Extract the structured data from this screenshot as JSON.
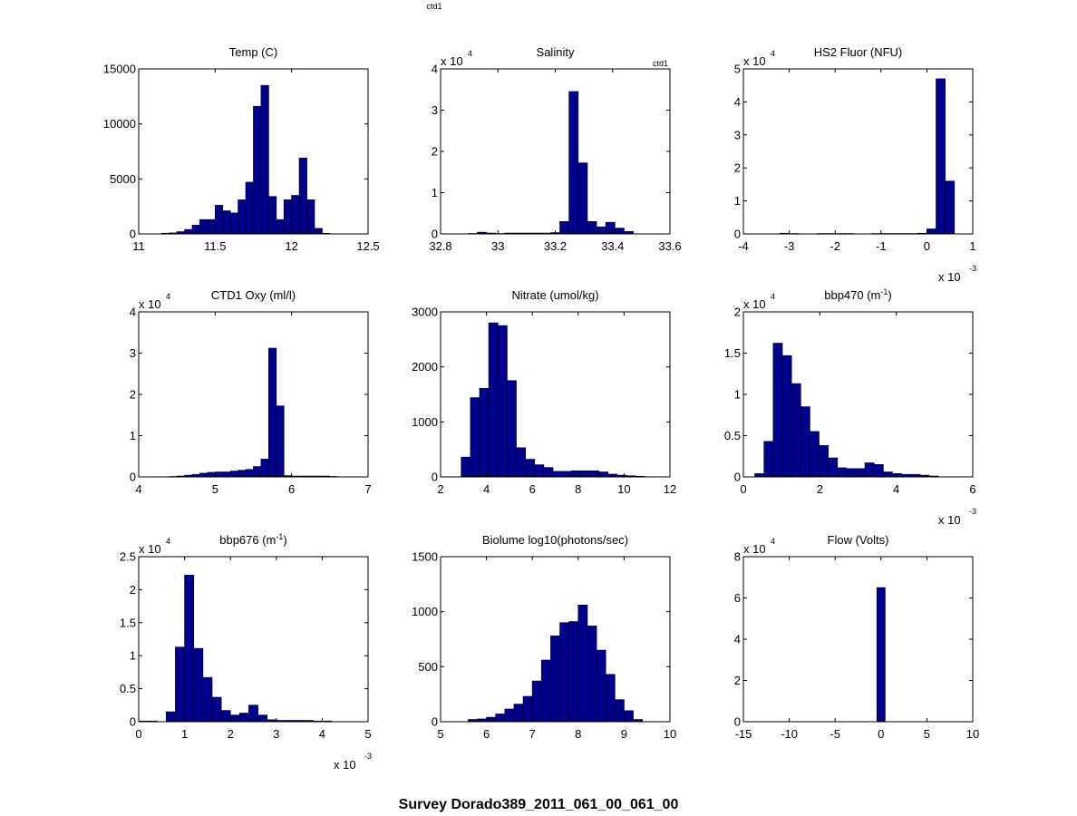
{
  "figure": {
    "top_label": "ctd1",
    "title": "Survey Dorado389_2011_061_00_061_00"
  },
  "chart_data": [
    {
      "type": "bar",
      "title": "Temp (C)",
      "xlim": [
        11,
        12.5
      ],
      "ylim": [
        0,
        15000
      ],
      "xticks": [
        11,
        11.5,
        12,
        12.5
      ],
      "xtick_labels": [
        "11",
        "11.5",
        "12",
        "12.5"
      ],
      "yticks": [
        0,
        5000,
        10000,
        15000
      ],
      "ytick_labels": [
        "0",
        "5000",
        "10000",
        "15000"
      ],
      "bin_width": 0.05,
      "bins": [
        11.175,
        11.225,
        11.275,
        11.325,
        11.375,
        11.425,
        11.475,
        11.525,
        11.575,
        11.625,
        11.675,
        11.725,
        11.775,
        11.825,
        11.875,
        11.925,
        11.975,
        12.025,
        12.075,
        12.125,
        12.175,
        12.225
      ],
      "values": [
        60,
        90,
        200,
        400,
        800,
        1300,
        1300,
        2600,
        2100,
        1900,
        3100,
        4700,
        11600,
        13500,
        3400,
        1300,
        3100,
        3500,
        6900,
        3100,
        500,
        50
      ]
    },
    {
      "type": "bar",
      "title": "Salinity",
      "corner_label": "ctd1",
      "xlim": [
        32.8,
        33.6
      ],
      "ylim": [
        0,
        4
      ],
      "y_multiplier": "x 10",
      "y_exponent": "4",
      "xticks": [
        32.8,
        33,
        33.2,
        33.4,
        33.6
      ],
      "xtick_labels": [
        "32.8",
        "33",
        "33.2",
        "33.4",
        "33.6"
      ],
      "yticks": [
        0,
        1,
        2,
        3,
        4
      ],
      "ytick_labels": [
        "0",
        "1",
        "2",
        "3",
        "4"
      ],
      "bin_width": 0.032,
      "bins": [
        32.816,
        32.848,
        32.88,
        32.912,
        32.944,
        32.976,
        33.008,
        33.04,
        33.072,
        33.104,
        33.136,
        33.168,
        33.2,
        33.232,
        33.264,
        33.296,
        33.328,
        33.36,
        33.392,
        33.424,
        33.456,
        33.488
      ],
      "values": [
        0,
        0,
        0,
        0.01,
        0.04,
        0.02,
        0.01,
        0.02,
        0.02,
        0.02,
        0.02,
        0.02,
        0.03,
        0.3,
        3.45,
        1.72,
        0.3,
        0.17,
        0.28,
        0.14,
        0.06,
        0
      ]
    },
    {
      "type": "bar",
      "title": "HS2 Fluor (NFU)",
      "xlim": [
        -4,
        1
      ],
      "ylim": [
        0,
        5
      ],
      "y_multiplier": "x 10",
      "y_exponent": "4",
      "x_multiplier": "x 10",
      "x_exponent": "-3",
      "xticks": [
        -4,
        -3,
        -2,
        -1,
        0,
        1
      ],
      "xtick_labels": [
        "-4",
        "-3",
        "-2",
        "-1",
        "0",
        "1"
      ],
      "yticks": [
        0,
        1,
        2,
        3,
        4,
        5
      ],
      "ytick_labels": [
        "0",
        "1",
        "2",
        "3",
        "4",
        "5"
      ],
      "bin_width": 0.2,
      "bins": [
        -3.1,
        -2.9,
        -2.7,
        -2.5,
        -2.3,
        -2.1,
        -1.9,
        -1.7,
        -1.5,
        -1.3,
        -1.1,
        -0.9,
        -0.7,
        -0.5,
        -0.3,
        -0.1,
        0.1,
        0.3,
        0.5
      ],
      "values": [
        0.02,
        0.01,
        0,
        0,
        0.01,
        0.01,
        0.01,
        0.01,
        0,
        0,
        0.01,
        0.01,
        0.01,
        0.01,
        0.01,
        0.02,
        0.15,
        4.7,
        1.6
      ]
    },
    {
      "type": "bar",
      "title": "CTD1 Oxy (ml/l)",
      "xlim": [
        4,
        7
      ],
      "ylim": [
        0,
        4
      ],
      "y_multiplier": "x 10",
      "y_exponent": "4",
      "xticks": [
        4,
        5,
        6,
        7
      ],
      "xtick_labels": [
        "4",
        "5",
        "6",
        "7"
      ],
      "yticks": [
        0,
        1,
        2,
        3,
        4
      ],
      "ytick_labels": [
        "0",
        "1",
        "2",
        "3",
        "4"
      ],
      "bin_width": 0.1,
      "bins": [
        4.45,
        4.55,
        4.65,
        4.75,
        4.85,
        4.95,
        5.05,
        5.15,
        5.25,
        5.35,
        5.45,
        5.55,
        5.65,
        5.75,
        5.85,
        5.95,
        6.05,
        6.15,
        6.25,
        6.35,
        6.45,
        6.55
      ],
      "values": [
        0.01,
        0.02,
        0.04,
        0.06,
        0.09,
        0.11,
        0.12,
        0.12,
        0.14,
        0.16,
        0.18,
        0.25,
        0.43,
        3.12,
        1.72,
        0.03,
        0.02,
        0.02,
        0.02,
        0.02,
        0.02,
        0.01
      ]
    },
    {
      "type": "bar",
      "title": "Nitrate (umol/kg)",
      "xlim": [
        2,
        12
      ],
      "ylim": [
        0,
        3000
      ],
      "xticks": [
        2,
        4,
        6,
        8,
        10,
        12
      ],
      "xtick_labels": [
        "2",
        "4",
        "6",
        "8",
        "10",
        "12"
      ],
      "yticks": [
        0,
        1000,
        2000,
        3000
      ],
      "ytick_labels": [
        "0",
        "1000",
        "2000",
        "3000"
      ],
      "bin_width": 0.4,
      "bins": [
        3.1,
        3.5,
        3.9,
        4.3,
        4.7,
        5.1,
        5.5,
        5.9,
        6.3,
        6.7,
        7.1,
        7.5,
        7.9,
        8.3,
        8.7,
        9.1,
        9.5,
        9.9,
        10.3,
        10.7
      ],
      "values": [
        360,
        1440,
        1610,
        2800,
        2750,
        1750,
        530,
        320,
        220,
        170,
        100,
        100,
        110,
        110,
        110,
        90,
        50,
        30,
        20,
        10
      ]
    },
    {
      "type": "bar",
      "title": "bbp470 (m",
      "title_sup": "-1",
      "title_end": ")",
      "xlim": [
        0,
        6
      ],
      "ylim": [
        0,
        2
      ],
      "y_multiplier": "x 10",
      "y_exponent": "4",
      "x_multiplier": "x 10",
      "x_exponent": "-3",
      "xticks": [
        0,
        2,
        4,
        6
      ],
      "xtick_labels": [
        "0",
        "2",
        "4",
        "6"
      ],
      "yticks": [
        0,
        0.5,
        1,
        1.5,
        2
      ],
      "ytick_labels": [
        "0",
        "0.5",
        "1",
        "1.5",
        "2"
      ],
      "bin_width": 0.24,
      "bins": [
        0.42,
        0.66,
        0.9,
        1.14,
        1.38,
        1.62,
        1.86,
        2.1,
        2.34,
        2.58,
        2.82,
        3.06,
        3.3,
        3.54,
        3.78,
        4.02,
        4.26,
        4.5,
        4.74,
        4.98
      ],
      "values": [
        0.04,
        0.43,
        1.62,
        1.47,
        1.13,
        0.85,
        0.55,
        0.38,
        0.23,
        0.11,
        0.1,
        0.1,
        0.17,
        0.15,
        0.06,
        0.04,
        0.03,
        0.03,
        0.02,
        0.01
      ]
    },
    {
      "type": "bar",
      "title": "bbp676 (m",
      "title_sup": "-1",
      "title_end": ")",
      "xlim": [
        0,
        5
      ],
      "ylim": [
        0,
        2.5
      ],
      "y_multiplier": "x 10",
      "y_exponent": "4",
      "x_multiplier": "x 10",
      "x_exponent": "-3",
      "xticks": [
        0,
        1,
        2,
        3,
        4,
        5
      ],
      "xtick_labels": [
        "0",
        "1",
        "2",
        "3",
        "4",
        "5"
      ],
      "yticks": [
        0,
        0.5,
        1,
        1.5,
        2,
        2.5
      ],
      "ytick_labels": [
        "0",
        "0.5",
        "1",
        "1.5",
        "2",
        "2.5"
      ],
      "bin_width": 0.2,
      "bins": [
        0.1,
        0.3,
        0.5,
        0.7,
        0.9,
        1.1,
        1.3,
        1.5,
        1.7,
        1.9,
        2.1,
        2.3,
        2.5,
        2.7,
        2.9,
        3.1,
        3.3,
        3.5,
        3.7,
        3.9,
        4.1
      ],
      "values": [
        0.01,
        0.01,
        0,
        0.15,
        1.13,
        2.22,
        1.11,
        0.67,
        0.37,
        0.17,
        0.1,
        0.13,
        0.25,
        0.1,
        0.03,
        0.02,
        0.02,
        0.02,
        0.02,
        0.01,
        0.01
      ]
    },
    {
      "type": "bar",
      "title": "Biolume log10(photons/sec)",
      "xlim": [
        5,
        10
      ],
      "ylim": [
        0,
        1500
      ],
      "xticks": [
        5,
        6,
        7,
        8,
        9,
        10
      ],
      "xtick_labels": [
        "5",
        "6",
        "7",
        "8",
        "9",
        "10"
      ],
      "yticks": [
        0,
        500,
        1000,
        1500
      ],
      "ytick_labels": [
        "0",
        "500",
        "1000",
        "1500"
      ],
      "bin_width": 0.2,
      "bins": [
        5.7,
        5.9,
        6.1,
        6.3,
        6.5,
        6.7,
        6.9,
        7.1,
        7.3,
        7.5,
        7.7,
        7.9,
        8.1,
        8.3,
        8.5,
        8.7,
        8.9,
        9.1,
        9.3
      ],
      "values": [
        20,
        25,
        40,
        70,
        115,
        160,
        230,
        370,
        560,
        780,
        900,
        910,
        1060,
        870,
        650,
        430,
        200,
        100,
        20
      ]
    },
    {
      "type": "bar",
      "title": "Flow (Volts)",
      "xlim": [
        -15,
        10
      ],
      "ylim": [
        0,
        8
      ],
      "y_multiplier": "x 10",
      "y_exponent": "4",
      "xticks": [
        -15,
        -10,
        -5,
        0,
        5,
        10
      ],
      "xtick_labels": [
        "-15",
        "-10",
        "-5",
        "0",
        "5",
        "10"
      ],
      "yticks": [
        0,
        2,
        4,
        6,
        8
      ],
      "ytick_labels": [
        "0",
        "2",
        "4",
        "6",
        "8"
      ],
      "bin_width": 0.9,
      "bins": [
        0
      ],
      "values": [
        6.5
      ]
    }
  ]
}
